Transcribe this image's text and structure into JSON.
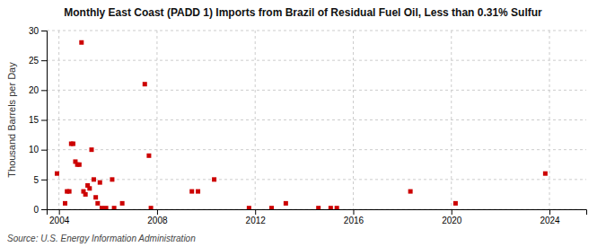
{
  "chart_data": {
    "type": "scatter",
    "title": "Monthly East Coast (PADD 1) Imports from Brazil of Residual Fuel Oil, Less than 0.31% Sulfur",
    "y_label": "Thousand Barrels per Day",
    "source": "Source: U.S. Energy Information Administration",
    "color": "#cc0000",
    "marker": "square",
    "grid": true,
    "xlim": [
      2003.5,
      2025.5
    ],
    "xticks": [
      2004,
      2008,
      2012,
      2016,
      2020,
      2024
    ],
    "ylim": [
      0,
      30
    ],
    "yticks": [
      0,
      5,
      10,
      15,
      20,
      25,
      30
    ],
    "x": [
      2003.92,
      2004.25,
      2004.33,
      2004.42,
      2004.5,
      2004.58,
      2004.67,
      2004.75,
      2004.83,
      2004.92,
      2005.0,
      2005.08,
      2005.17,
      2005.25,
      2005.33,
      2005.42,
      2005.5,
      2005.58,
      2005.67,
      2005.75,
      2005.92,
      2006.17,
      2006.25,
      2006.58,
      2007.5,
      2007.67,
      2007.75,
      2009.42,
      2009.67,
      2010.33,
      2011.75,
      2012.67,
      2013.25,
      2014.58,
      2015.08,
      2015.33,
      2018.33,
      2020.17,
      2023.83
    ],
    "values": [
      6.0,
      1.0,
      3.0,
      3.0,
      11.0,
      11.0,
      8.0,
      7.5,
      7.5,
      28.0,
      3.0,
      2.5,
      4.0,
      3.5,
      10.0,
      5.0,
      2.0,
      1.0,
      4.5,
      0.2,
      0.2,
      5.0,
      0.2,
      1.0,
      21.0,
      9.0,
      0.2,
      3.0,
      3.0,
      5.0,
      0.2,
      0.2,
      1.0,
      0.2,
      0.2,
      0.2,
      3.0,
      1.0,
      6.0
    ]
  }
}
